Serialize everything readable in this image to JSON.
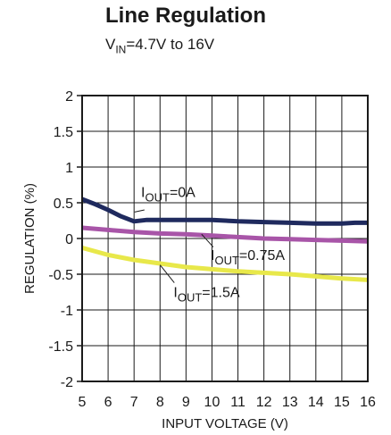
{
  "header": {
    "title": "Line Regulation",
    "subtitle_prefix": "V",
    "subtitle_sub": "IN",
    "subtitle_suffix": "=4.7V to 16V"
  },
  "chart_data": {
    "type": "line",
    "title": "Line Regulation",
    "xlabel": "INPUT VOLTAGE (V)",
    "ylabel": "REGULATION (%)",
    "xlim": [
      5,
      16
    ],
    "ylim": [
      -2,
      2
    ],
    "x_ticks": [
      "5",
      "6",
      "7",
      "8",
      "9",
      "10",
      "11",
      "12",
      "13",
      "14",
      "15",
      "16"
    ],
    "y_ticks": [
      "2",
      "1.5",
      "1",
      "0.5",
      "0",
      "-0.5",
      "-1",
      "-1.5",
      "-2"
    ],
    "grid": true,
    "series": [
      {
        "name": "IOUT=0A",
        "label_main": "I",
        "label_sub": "OUT",
        "label_rest": "=0A",
        "color": "#1f2a5e",
        "x": [
          5,
          5.5,
          6,
          6.5,
          7,
          7.5,
          8,
          9,
          10,
          11,
          12,
          13,
          14,
          15,
          15.5,
          16
        ],
        "y": [
          0.55,
          0.48,
          0.4,
          0.31,
          0.24,
          0.26,
          0.26,
          0.26,
          0.26,
          0.24,
          0.23,
          0.22,
          0.21,
          0.21,
          0.22,
          0.22
        ]
      },
      {
        "name": "IOUT=0.75A",
        "label_main": "I",
        "label_sub": "OUT",
        "label_rest": "=0.75A",
        "color": "#a855a8",
        "x": [
          5,
          6,
          7,
          8,
          9,
          10,
          11,
          12,
          13,
          14,
          15,
          16
        ],
        "y": [
          0.15,
          0.12,
          0.09,
          0.07,
          0.06,
          0.04,
          0.02,
          0.0,
          -0.01,
          -0.02,
          -0.03,
          -0.04
        ]
      },
      {
        "name": "IOUT=1.5A",
        "label_main": "I",
        "label_sub": "OUT",
        "label_rest": "=1.5A",
        "color": "#e8e84a",
        "x": [
          5,
          6,
          7,
          8,
          9,
          10,
          11,
          12,
          13,
          14,
          15,
          16
        ],
        "y": [
          -0.13,
          -0.23,
          -0.3,
          -0.35,
          -0.4,
          -0.43,
          -0.46,
          -0.48,
          -0.5,
          -0.53,
          -0.56,
          -0.58
        ]
      }
    ]
  }
}
